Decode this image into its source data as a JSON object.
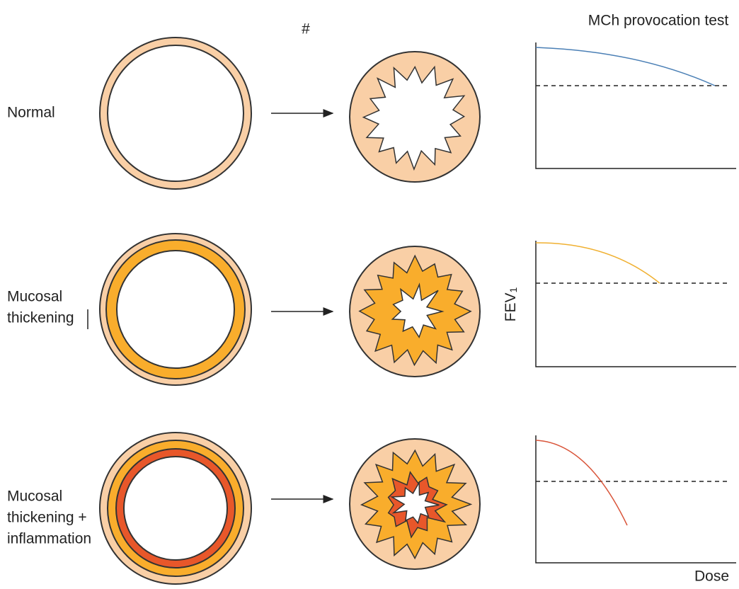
{
  "header": {
    "symbol": "#",
    "title": "MCh provocation test"
  },
  "rows": [
    {
      "label": [
        "Normal"
      ]
    },
    {
      "label": [
        "Mucosal",
        "thickening"
      ]
    },
    {
      "label": [
        "Mucosal",
        "thickening +",
        "inflammation"
      ]
    }
  ],
  "graph": {
    "y_label": "FEV",
    "y_label_sub": "1",
    "x_label": "Dose"
  }
}
